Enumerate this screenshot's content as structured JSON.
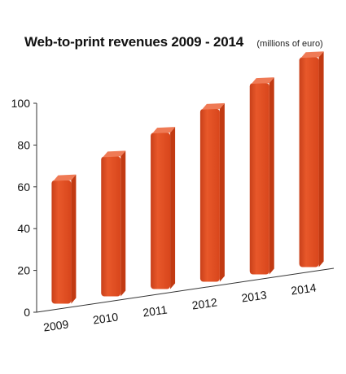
{
  "chart_data": {
    "type": "bar",
    "title": "Web-to-print revenues 2009 - 2014",
    "subtitle": "(millions of euro)",
    "categories": [
      "2009",
      "2010",
      "2011",
      "2012",
      "2013",
      "2014"
    ],
    "values": [
      60,
      68,
      76,
      84,
      93,
      102
    ],
    "yticks": [
      0,
      20,
      40,
      60,
      80,
      100
    ],
    "ylim": [
      0,
      100
    ],
    "xlabel": "",
    "ylabel": "",
    "grid": false,
    "colors": {
      "bar_front": "#e04a1c",
      "bar_side": "#c23a12",
      "bar_top": "#ef7a55",
      "axis": "#333333"
    }
  }
}
